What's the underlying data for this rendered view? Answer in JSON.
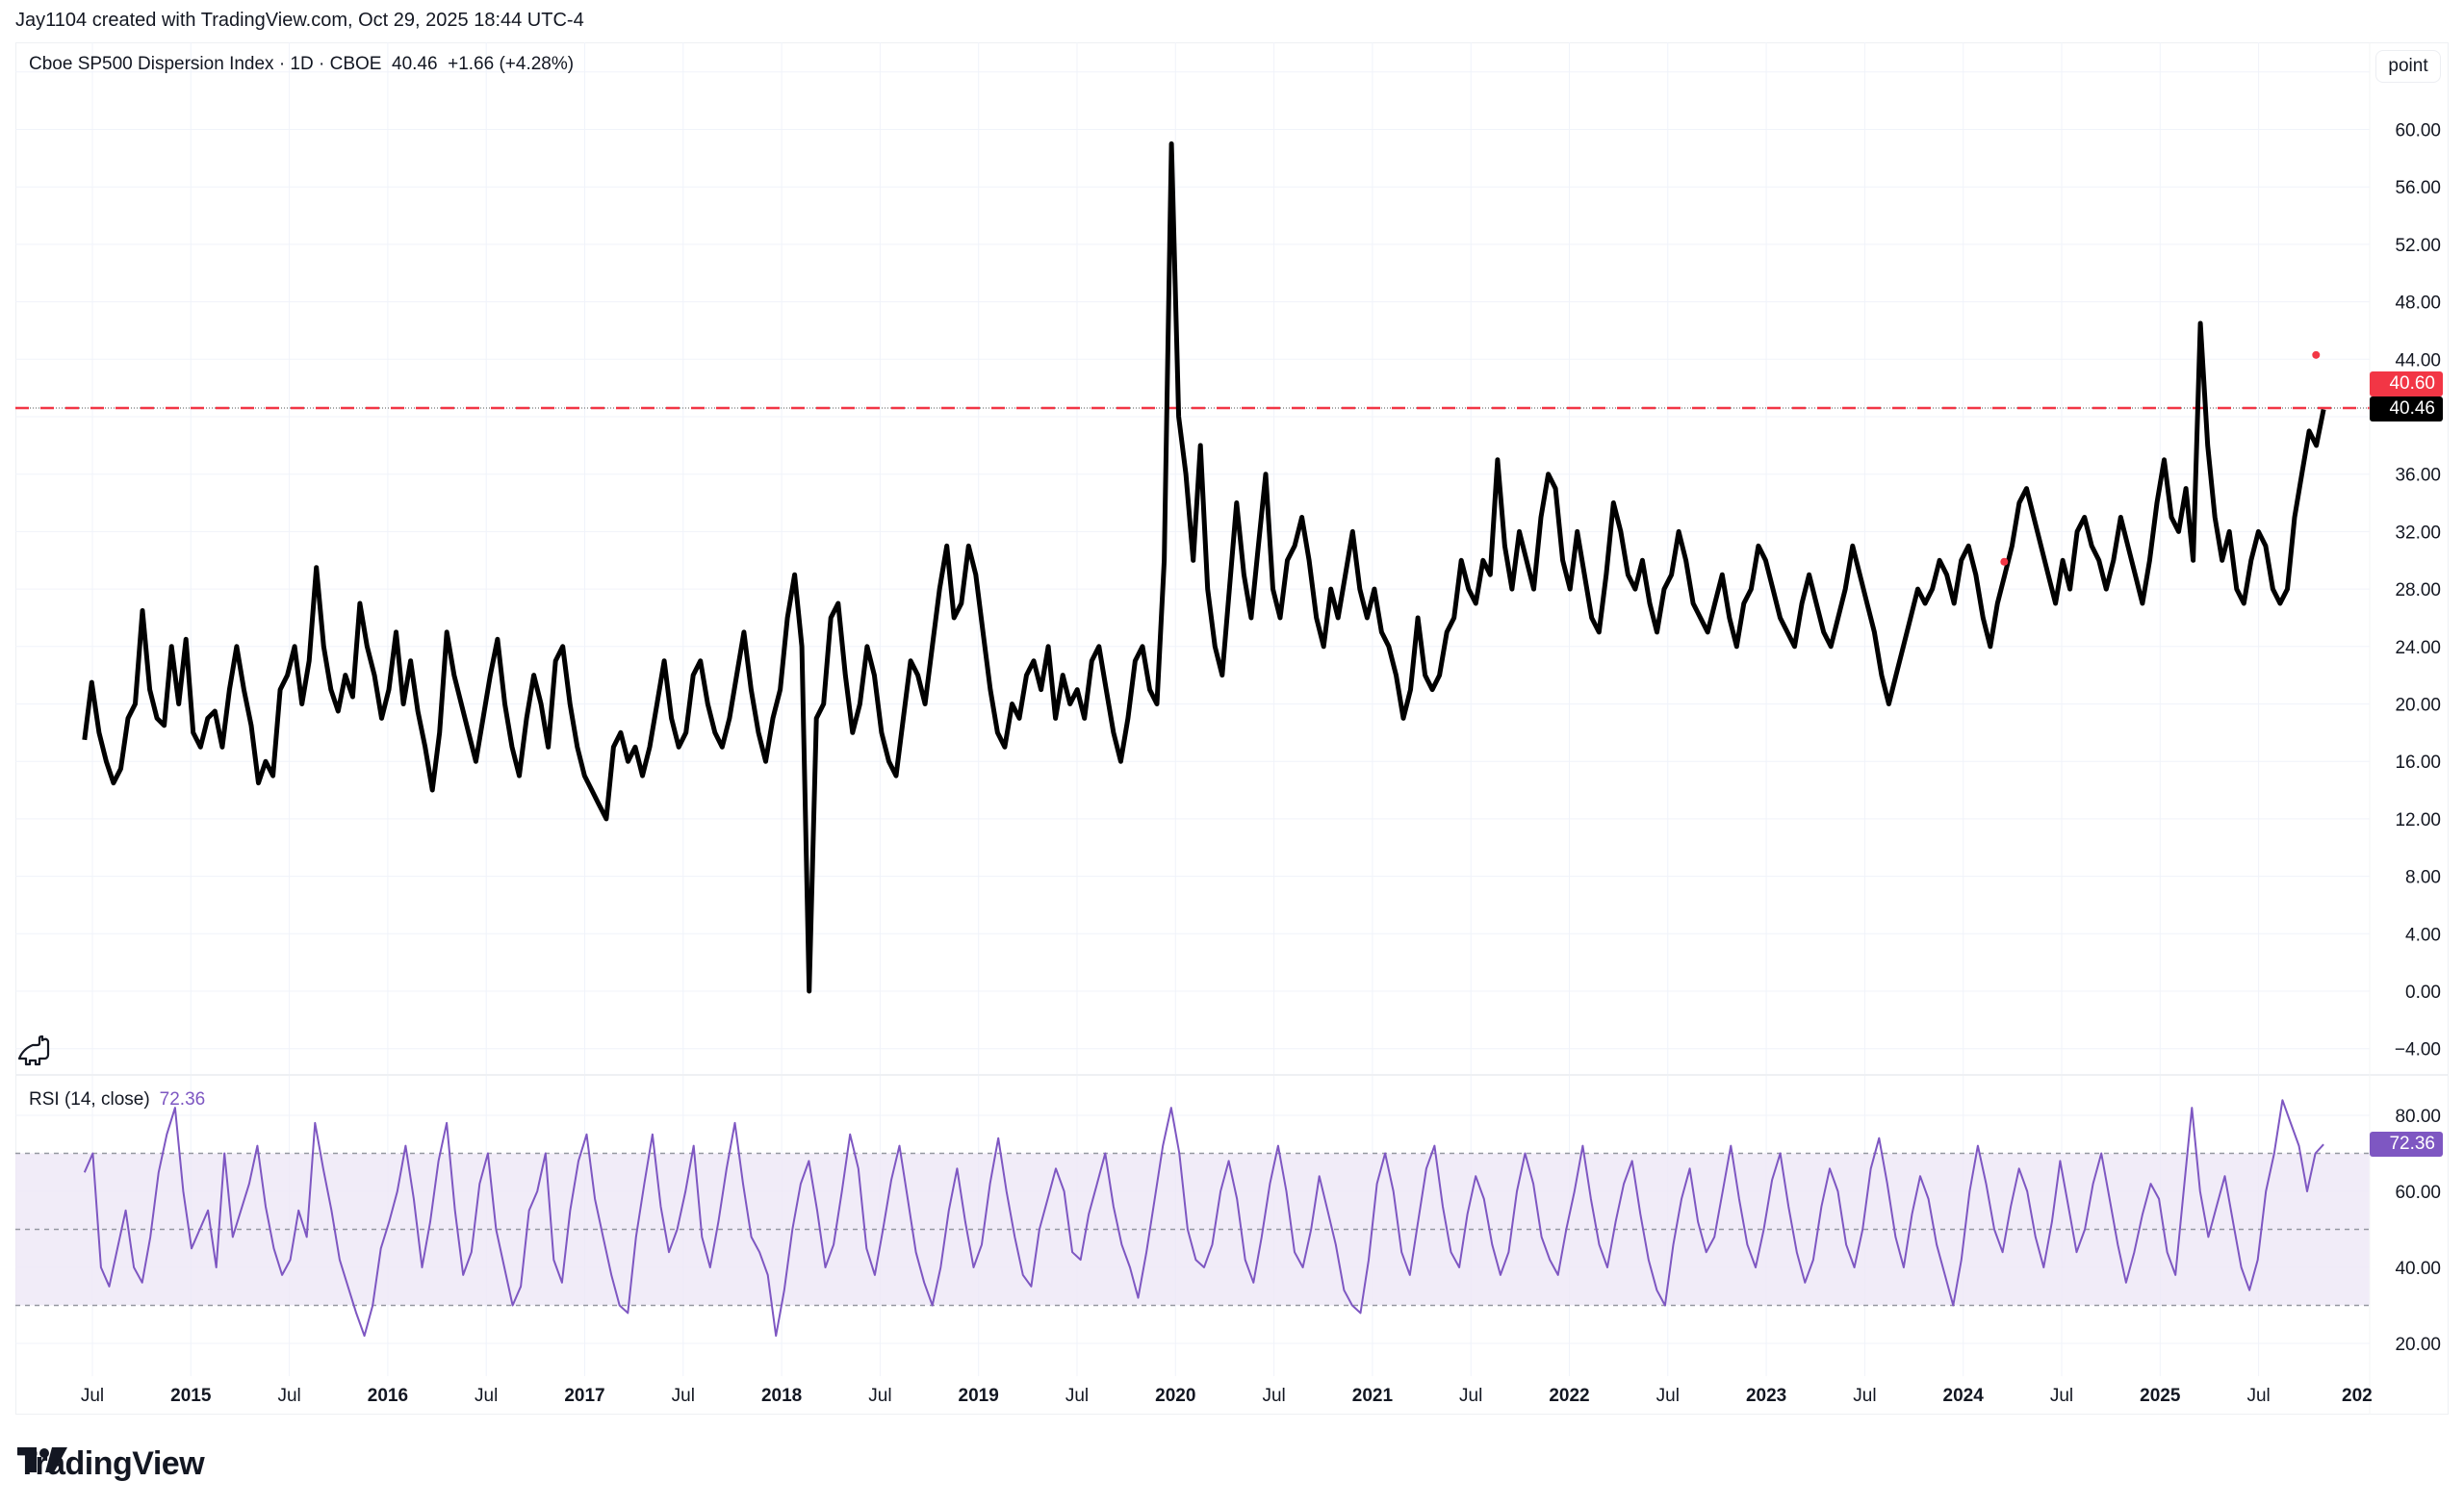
{
  "credit": "Jay1104 created with TradingView.com, Oct 29, 2025 18:44 UTC-4",
  "legend": {
    "symbol": "Cboe SP500 Dispersion Index",
    "interval": "1D",
    "exchange": "CBOE",
    "text": "Cboe SP500 Dispersion Index · 1D · CBOE  40.46  +1.66 (+4.28%)",
    "last": "40.46",
    "change": "+1.66",
    "change_pct": "(+4.28%)"
  },
  "unit_button": "point",
  "rsi_legend": {
    "label": "RSI (14, close)",
    "value": "72.36"
  },
  "badges": {
    "alert_level": {
      "value": "40.60",
      "color": "#f23645"
    },
    "last_price": {
      "value": "40.46",
      "color": "#000000"
    },
    "rsi_value": {
      "value": "72.36",
      "color": "#7e57c2"
    }
  },
  "logo": {
    "text": "TradingView",
    "icon": "tradingview-logo-icon"
  },
  "colors": {
    "price_line": "#000000",
    "rsi_line": "#7e57c2",
    "rsi_band": "#ede7f6",
    "alert_line": "#f23645",
    "grid": "#f0f3fa"
  },
  "chart_data": [
    {
      "type": "line",
      "title": "Cboe SP500 Dispersion Index · 1D · CBOE",
      "ylabel": "point",
      "ylim": [
        -6,
        64
      ],
      "yticks": [
        "60.00",
        "56.00",
        "52.00",
        "48.00",
        "44.00",
        "36.00",
        "32.00",
        "28.00",
        "24.00",
        "20.00",
        "16.00",
        "12.00",
        "8.00",
        "4.00",
        "0.00",
        "−4.00"
      ],
      "xticks": [
        "Jul",
        "2015",
        "Jul",
        "2016",
        "Jul",
        "2017",
        "Jul",
        "2018",
        "Jul",
        "2019",
        "Jul",
        "2020",
        "Jul",
        "2021",
        "Jul",
        "2022",
        "Jul",
        "2023",
        "Jul",
        "2024",
        "Jul",
        "2025",
        "Jul",
        "202"
      ],
      "horizontal_line": {
        "value": 40.6,
        "style": "dashed",
        "color": "#f23645"
      },
      "markers": [
        {
          "date": "2024-03",
          "value": 29.9,
          "color": "#f23645"
        },
        {
          "date": "2025-10",
          "value": 44.3,
          "color": "#f23645"
        }
      ],
      "last_value": 40.46,
      "x_start": 2014.46,
      "x_end": 2025.83,
      "values": [
        17.5,
        21.5,
        18,
        16,
        14.5,
        15.5,
        19,
        20,
        26.5,
        21,
        19,
        18.5,
        24,
        20,
        24.5,
        18,
        17,
        19,
        19.5,
        17,
        21,
        24,
        21,
        18.5,
        14.5,
        16,
        15,
        21,
        22,
        24,
        20,
        23,
        29.5,
        24,
        21,
        19.5,
        22,
        20.5,
        27,
        24,
        22,
        19,
        21,
        25,
        20,
        23,
        19.5,
        17,
        14,
        18,
        25,
        22,
        20,
        18,
        16,
        19,
        22,
        24.5,
        20,
        17,
        15,
        19,
        22,
        20,
        17,
        23,
        24,
        20,
        17,
        15,
        14,
        13,
        12,
        17,
        18,
        16,
        17,
        15,
        17,
        20,
        23,
        19,
        17,
        18,
        22,
        23,
        20,
        18,
        17,
        19,
        22,
        25,
        21,
        18,
        16,
        19,
        21,
        26,
        29,
        24,
        0,
        19,
        20,
        26,
        27,
        22,
        18,
        20,
        24,
        22,
        18,
        16,
        15,
        19,
        23,
        22,
        20,
        24,
        28,
        31,
        26,
        27,
        31,
        29,
        25,
        21,
        18,
        17,
        20,
        19,
        22,
        23,
        21,
        24,
        19,
        22,
        20,
        21,
        19,
        23,
        24,
        21,
        18,
        16,
        19,
        23,
        24,
        21,
        20,
        30,
        59,
        40,
        36,
        30,
        38,
        28,
        24,
        22,
        28,
        34,
        29,
        26,
        31,
        36,
        28,
        26,
        30,
        31,
        33,
        30,
        26,
        24,
        28,
        26,
        29,
        32,
        28,
        26,
        28,
        25,
        24,
        22,
        19,
        21,
        26,
        22,
        21,
        22,
        25,
        26,
        30,
        28,
        27,
        30,
        29,
        37,
        31,
        28,
        32,
        30,
        28,
        33,
        36,
        35,
        30,
        28,
        32,
        29,
        26,
        25,
        29,
        34,
        32,
        29,
        28,
        30,
        27,
        25,
        28,
        29,
        32,
        30,
        27,
        26,
        25,
        27,
        29,
        26,
        24,
        27,
        28,
        31,
        30,
        28,
        26,
        25,
        24,
        27,
        29,
        27,
        25,
        24,
        26,
        28,
        31,
        29,
        27,
        25,
        22,
        20,
        22,
        24,
        26,
        28,
        27,
        28,
        30,
        29,
        27,
        30,
        31,
        29,
        26,
        24,
        27,
        29,
        31,
        34,
        35,
        33,
        31,
        29,
        27,
        30,
        28,
        32,
        33,
        31,
        30,
        28,
        30,
        33,
        31,
        29,
        27,
        30,
        34,
        37,
        33,
        32,
        35,
        30,
        46.5,
        38,
        33,
        30,
        32,
        28,
        27,
        30,
        32,
        31,
        28,
        27,
        28,
        33,
        36,
        39,
        38,
        40.5
      ]
    },
    {
      "type": "line",
      "title": "RSI (14, close)",
      "ylim": [
        10,
        90
      ],
      "yticks": [
        "80.00",
        "60.00",
        "40.00",
        "20.00"
      ],
      "bands": {
        "upper": 70,
        "middle": 50,
        "lower": 30
      },
      "last_value": 72.36,
      "values": [
        65,
        70,
        40,
        35,
        45,
        55,
        40,
        36,
        48,
        65,
        75,
        82,
        60,
        45,
        50,
        55,
        40,
        70,
        48,
        55,
        62,
        72,
        56,
        45,
        38,
        42,
        55,
        48,
        78,
        66,
        55,
        42,
        35,
        28,
        22,
        30,
        45,
        52,
        60,
        72,
        58,
        40,
        52,
        68,
        78,
        55,
        38,
        44,
        62,
        70,
        50,
        40,
        30,
        35,
        55,
        60,
        70,
        42,
        36,
        55,
        68,
        75,
        58,
        48,
        38,
        30,
        28,
        48,
        62,
        75,
        56,
        44,
        50,
        60,
        72,
        48,
        40,
        52,
        66,
        78,
        62,
        48,
        44,
        38,
        22,
        34,
        50,
        62,
        68,
        55,
        40,
        46,
        60,
        75,
        66,
        45,
        38,
        50,
        63,
        72,
        58,
        44,
        36,
        30,
        40,
        55,
        66,
        52,
        40,
        46,
        62,
        74,
        60,
        48,
        38,
        35,
        50,
        58,
        66,
        60,
        44,
        42,
        54,
        62,
        70,
        56,
        46,
        40,
        32,
        44,
        58,
        72,
        82,
        70,
        50,
        42,
        40,
        46,
        60,
        68,
        58,
        42,
        36,
        48,
        62,
        72,
        60,
        44,
        40,
        50,
        64,
        55,
        46,
        34,
        30,
        28,
        42,
        62,
        70,
        60,
        44,
        38,
        52,
        66,
        72,
        56,
        44,
        40,
        54,
        64,
        58,
        46,
        38,
        44,
        60,
        70,
        62,
        48,
        42,
        38,
        50,
        60,
        72,
        58,
        46,
        40,
        52,
        62,
        68,
        54,
        42,
        34,
        30,
        46,
        58,
        66,
        52,
        44,
        48,
        60,
        72,
        58,
        46,
        40,
        50,
        63,
        70,
        56,
        44,
        36,
        42,
        56,
        66,
        60,
        46,
        40,
        50,
        66,
        74,
        62,
        48,
        40,
        54,
        64,
        58,
        46,
        38,
        30,
        42,
        60,
        72,
        62,
        50,
        44,
        56,
        66,
        60,
        48,
        40,
        52,
        68,
        56,
        44,
        50,
        62,
        70,
        58,
        46,
        36,
        44,
        54,
        62,
        58,
        44,
        38,
        60,
        82,
        60,
        48,
        56,
        64,
        52,
        40,
        34,
        42,
        60,
        70,
        84,
        78,
        72,
        60,
        70,
        72.36
      ]
    }
  ]
}
